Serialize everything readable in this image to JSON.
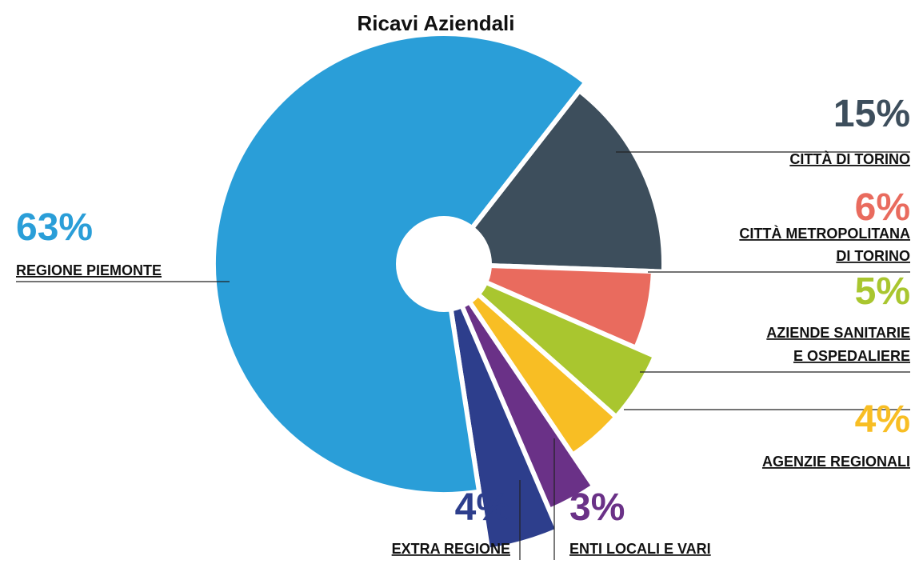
{
  "chart_data": {
    "type": "pie",
    "title": "Ricavi Aziendali",
    "categories": [
      [
        "CITTÀ DI TORINO"
      ],
      [
        "CITTÀ METROPOLITANA",
        "DI TORINO"
      ],
      [
        "AZIENDE SANITARIE",
        "E OSPEDALIERE"
      ],
      [
        "AGENZIE REGIONALI"
      ],
      [
        "ENTI LOCALI E VARI"
      ],
      [
        "EXTRA REGIONE"
      ],
      [
        "REGIONE PIEMONTE"
      ]
    ],
    "values": [
      15,
      6,
      5,
      4,
      3,
      4,
      63
    ],
    "value_labels": [
      "15%",
      "6%",
      "5%",
      "4%",
      "3%",
      "4%",
      "63%"
    ],
    "colors": [
      "#3d4e5c",
      "#e96b5e",
      "#a9c62f",
      "#f8be24",
      "#6a3187",
      "#2d3e8c",
      "#2a9ed8"
    ]
  }
}
